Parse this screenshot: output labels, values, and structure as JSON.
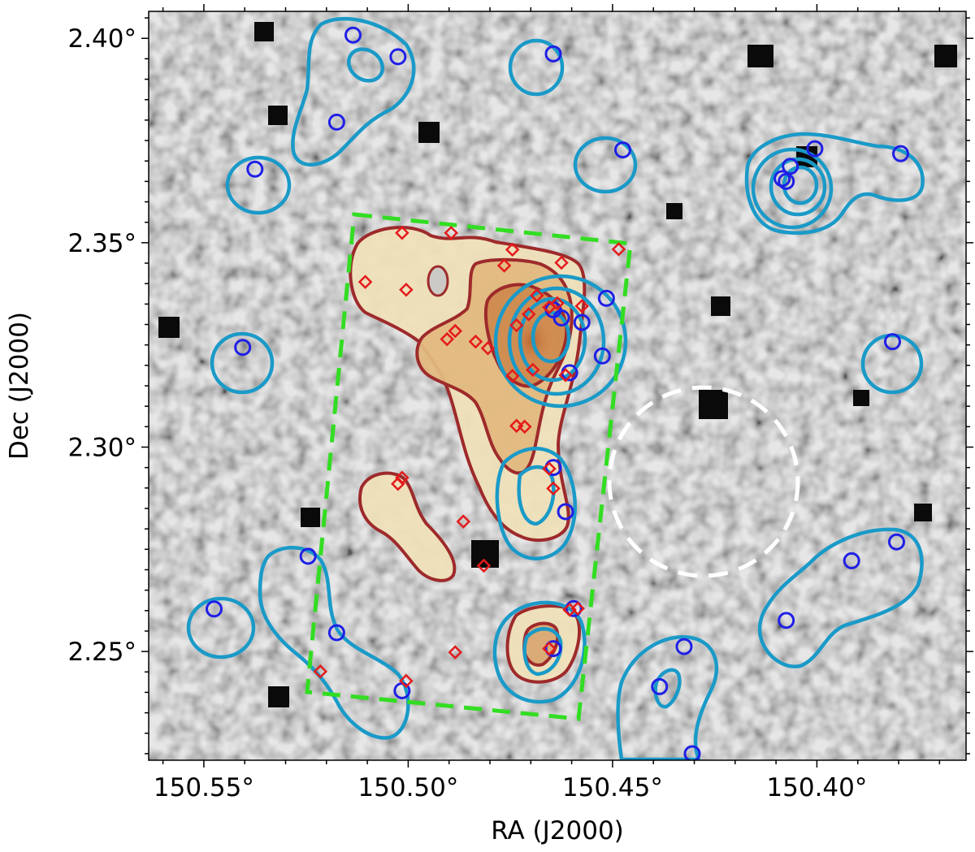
{
  "chart_data": {
    "type": "scatter",
    "title": "",
    "xlabel": "RA (J2000)",
    "ylabel": "Dec (J2000)",
    "x_reversed": true,
    "xlim": [
      150.5635,
      150.3635
    ],
    "ylim": [
      2.2234,
      2.4066
    ],
    "x_ticks": [
      150.55,
      150.5,
      150.45,
      150.4
    ],
    "x_tick_labels": [
      "150.55°",
      "150.50°",
      "150.45°",
      "150.40°"
    ],
    "y_ticks": [
      2.25,
      2.3,
      2.35,
      2.4
    ],
    "y_tick_labels": [
      "2.25°",
      "2.30°",
      "2.35°",
      "2.40°"
    ],
    "grid": false,
    "background": "greyscale sky image",
    "colors": {
      "blue_markers": "#1f1fe6",
      "red_markers": "#e41a1c",
      "cyan_contours": "#1a9ac8",
      "red_contours": "#9e2a2b",
      "density_fill": "#d4884a",
      "region_box": "#33dd22",
      "aperture_circle": "#ffffff"
    },
    "series": [
      {
        "marker": "open-circle",
        "color": "#1f1fe6",
        "x": [
          150.5135,
          150.5025,
          150.5175,
          150.5375,
          150.4645,
          150.4475,
          150.5405,
          150.4065,
          150.4005,
          150.4075,
          150.4085,
          150.3795,
          150.4645,
          150.4575,
          150.4625,
          150.4515,
          150.4605,
          150.4525,
          150.3815,
          150.4645,
          150.4615,
          150.5245,
          150.5175,
          150.5475,
          150.5015,
          150.4645,
          150.4595,
          150.4385,
          150.4325,
          150.4305,
          150.3915,
          150.4075,
          150.3805
        ],
        "y": [
          2.4008,
          2.3955,
          2.3795,
          2.368,
          2.3962,
          2.3727,
          2.3244,
          2.3687,
          2.373,
          2.365,
          2.3657,
          2.3718,
          2.3336,
          2.3305,
          2.3316,
          2.3364,
          2.3182,
          2.3223,
          2.3258,
          2.295,
          2.2842,
          2.2733,
          2.2546,
          2.2604,
          2.2404,
          2.2507,
          2.2605,
          2.2414,
          2.2512,
          2.225,
          2.2722,
          2.2576,
          2.2768
        ]
      },
      {
        "marker": "open-diamond",
        "color": "#e41a1c",
        "x": [
          150.5015,
          150.4895,
          150.5105,
          150.5005,
          150.4745,
          150.4625,
          150.4485,
          150.4765,
          150.4685,
          150.4655,
          150.4885,
          150.4905,
          150.4835,
          150.4805,
          150.4735,
          150.4705,
          150.4635,
          150.4575,
          150.4745,
          150.4695,
          150.4615,
          150.4735,
          150.4715,
          150.5015,
          150.5025,
          150.4865,
          150.4815,
          150.4655,
          150.4645,
          150.4605,
          150.4585,
          150.4655,
          150.4885,
          150.5215,
          150.5005
        ],
        "y": [
          2.3524,
          2.3524,
          2.3404,
          2.3385,
          2.3483,
          2.3451,
          2.3484,
          2.3444,
          2.3371,
          2.3342,
          2.3284,
          2.3264,
          2.3258,
          2.3242,
          2.3298,
          2.3325,
          2.3352,
          2.3345,
          2.3174,
          2.3189,
          2.3176,
          2.3052,
          2.305,
          2.2925,
          2.291,
          2.2818,
          2.271,
          2.2947,
          2.2899,
          2.2602,
          2.2605,
          2.2507,
          2.2498,
          2.2451,
          2.2428
        ]
      }
    ],
    "annotations": [
      {
        "kind": "dashed-polygon",
        "color": "#33dd22",
        "ra": [
          150.5125,
          150.4515,
          150.4605,
          150.5225,
          150.5125
        ],
        "dec": [
          2.3584,
          2.3504,
          2.2334,
          2.2414,
          2.3584
        ]
      },
      {
        "kind": "dashed-circle",
        "color": "#ffffff",
        "ra_center": 150.4285,
        "dec_center": 2.2929,
        "radius_deg": 0.0231
      },
      {
        "kind": "filled-contours",
        "color": "#9e2a2b",
        "levels": 3
      },
      {
        "kind": "line-contours",
        "color": "#1a9ac8"
      }
    ]
  }
}
